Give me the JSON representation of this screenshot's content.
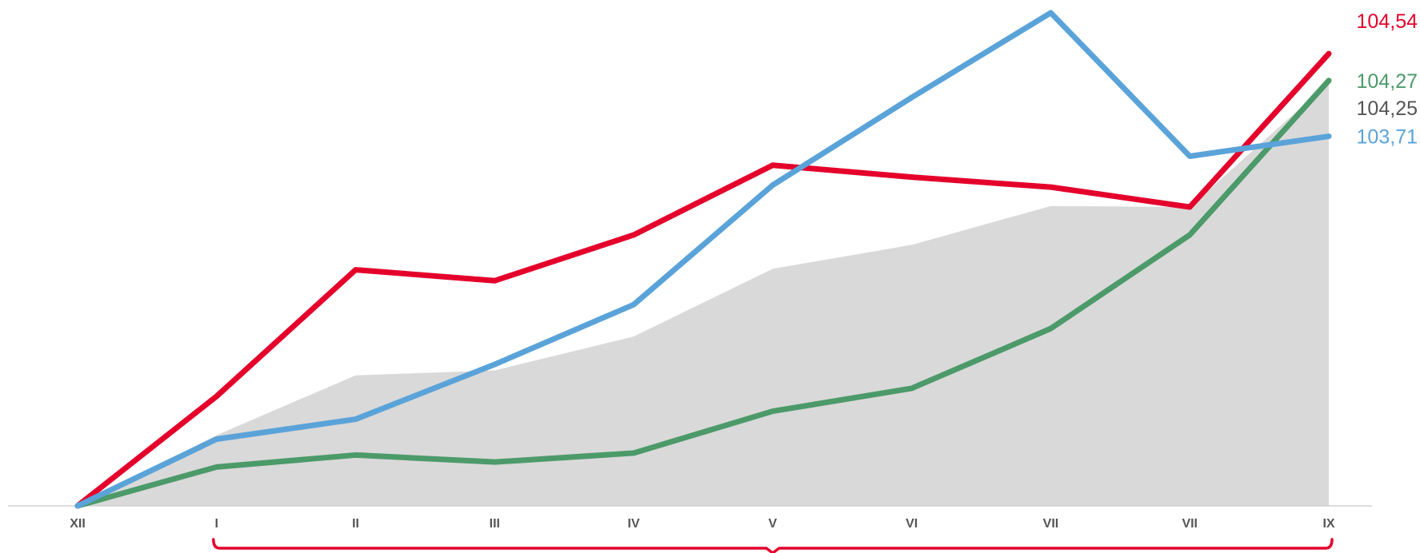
{
  "chart_data": {
    "type": "line",
    "categories": [
      "XII",
      "I",
      "II",
      "III",
      "IV",
      "V",
      "VI",
      "VII",
      "VII",
      "IX"
    ],
    "ylim": [
      100,
      104.95
    ],
    "grid": false,
    "title": "",
    "xlabel": "",
    "ylabel": "",
    "series": [
      {
        "kind": "area",
        "color": "#d9d9d9",
        "values": [
          100.0,
          100.71,
          101.31,
          101.36,
          101.7,
          102.38,
          102.62,
          103.01,
          103.0,
          104.25
        ],
        "end_label": "104,25",
        "label_color": "#555555"
      },
      {
        "kind": "line",
        "color": "#e4002b",
        "values": [
          100.0,
          101.1,
          102.37,
          102.26,
          102.72,
          103.42,
          103.3,
          103.2,
          103.0,
          104.54
        ],
        "end_label": "104,54",
        "label_color": "#e4002b"
      },
      {
        "kind": "line",
        "color": "#4c9a6a",
        "values": [
          100.0,
          100.39,
          100.51,
          100.44,
          100.53,
          100.95,
          101.18,
          101.78,
          102.72,
          104.27
        ],
        "end_label": "104,27",
        "label_color": "#4c9a6a"
      },
      {
        "kind": "line",
        "color": "#5aa3d9",
        "values": [
          100.0,
          100.67,
          100.87,
          101.42,
          102.02,
          103.22,
          104.1,
          104.95,
          103.51,
          103.71
        ],
        "end_label": "103,71",
        "label_color": "#5aa3d9"
      }
    ],
    "bracket": {
      "color": "#e4002b",
      "from": "I",
      "to": "IX"
    }
  }
}
